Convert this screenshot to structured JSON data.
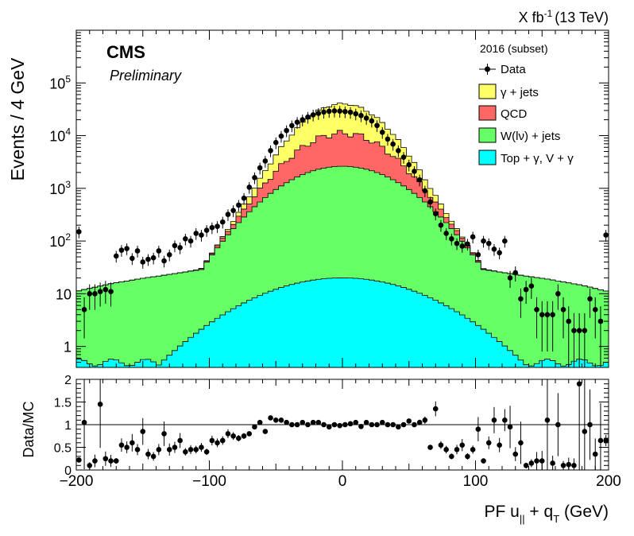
{
  "chart_data": [
    {
      "type": "stacked-histogram",
      "title": "",
      "lumi_label": {
        "main": "X fb",
        "exponent": "-1",
        "energy": "(13 TeV)"
      },
      "experiment": "CMS",
      "status": "Preliminary",
      "ylabel": "Events / 4 GeV",
      "yscale": "log",
      "ylim": [
        0.4,
        1000000
      ],
      "xlim": [
        -200,
        200
      ],
      "bin_width": 4,
      "grid": false,
      "legend_position": "top-right",
      "legend_header": "2016 (subset)",
      "y_ticks": [
        {
          "value": 100000,
          "base": "10",
          "exp": "5"
        },
        {
          "value": 10000,
          "base": "10",
          "exp": "4"
        },
        {
          "value": 1000,
          "base": "10",
          "exp": "3"
        },
        {
          "value": 100,
          "base": "10",
          "exp": "2"
        },
        {
          "value": 10,
          "base": "10",
          "exp": ""
        },
        {
          "value": 1,
          "base": "1",
          "exp": ""
        }
      ],
      "legend": [
        {
          "label": "Data",
          "kind": "marker",
          "color": "#000000"
        },
        {
          "label": "γ + jets",
          "kind": "fill",
          "color": "#ffff66"
        },
        {
          "label": "QCD",
          "kind": "fill",
          "color": "#ff6666"
        },
        {
          "label": "W(lν) + jets",
          "kind": "fill",
          "color": "#66ff66"
        },
        {
          "label": "Top + γ, V + γ",
          "kind": "fill",
          "color": "#00ffff"
        }
      ],
      "stack_order": [
        "Top + γ, V + γ",
        "W(lν) + jets",
        "QCD",
        "γ + jets"
      ],
      "series": [
        {
          "name": "Top + γ, V + γ",
          "color": "#00ffff",
          "peak": 20,
          "width": 50,
          "floor": 0.5
        },
        {
          "name": "W(lν) + jets",
          "color": "#66ff66",
          "peak_total": 2600,
          "width_core": 35,
          "tail_plateau": 45,
          "tail_slope_per_bin": 0.008
        },
        {
          "name": "QCD",
          "color": "#ff6666",
          "peak_total": 10000,
          "width": 25
        },
        {
          "name": "γ + jets",
          "color": "#ffff66",
          "peak_total": 29000,
          "width": 22
        }
      ],
      "data_points": [
        [
          -198,
          150
        ],
        [
          -194,
          5
        ],
        [
          -190,
          10
        ],
        [
          -186,
          10
        ],
        [
          -182,
          11
        ],
        [
          -178,
          12
        ],
        [
          -174,
          11
        ],
        [
          -170,
          52
        ],
        [
          -166,
          67
        ],
        [
          -162,
          72
        ],
        [
          -158,
          47
        ],
        [
          -154,
          65
        ],
        [
          -150,
          40
        ],
        [
          -146,
          45
        ],
        [
          -142,
          48
        ],
        [
          -138,
          65
        ],
        [
          -134,
          42
        ],
        [
          -130,
          55
        ],
        [
          -126,
          82
        ],
        [
          -122,
          75
        ],
        [
          -118,
          110
        ],
        [
          -114,
          100
        ],
        [
          -110,
          140
        ],
        [
          -106,
          130
        ],
        [
          -102,
          160
        ],
        [
          -98,
          180
        ],
        [
          -94,
          190
        ],
        [
          -90,
          230
        ],
        [
          -86,
          320
        ],
        [
          -82,
          380
        ],
        [
          -78,
          480
        ],
        [
          -74,
          650
        ],
        [
          -70,
          1050
        ],
        [
          -66,
          1600
        ],
        [
          -62,
          2450
        ],
        [
          -58,
          3300
        ],
        [
          -54,
          5200
        ],
        [
          -50,
          7400
        ],
        [
          -46,
          9800
        ],
        [
          -42,
          12500
        ],
        [
          -38,
          15500
        ],
        [
          -34,
          18000
        ],
        [
          -30,
          20000
        ],
        [
          -26,
          22500
        ],
        [
          -22,
          24800
        ],
        [
          -18,
          26500
        ],
        [
          -14,
          28000
        ],
        [
          -10,
          29000
        ],
        [
          -6,
          29500
        ],
        [
          -2,
          29200
        ],
        [
          2,
          28600
        ],
        [
          6,
          27800
        ],
        [
          10,
          26000
        ],
        [
          14,
          24000
        ],
        [
          18,
          21500
        ],
        [
          22,
          19000
        ],
        [
          26,
          15600
        ],
        [
          30,
          11600
        ],
        [
          34,
          8600
        ],
        [
          38,
          6900
        ],
        [
          42,
          5200
        ],
        [
          46,
          3900
        ],
        [
          50,
          2800
        ],
        [
          54,
          2100
        ],
        [
          58,
          1450
        ],
        [
          62,
          900
        ],
        [
          66,
          550
        ],
        [
          70,
          330
        ],
        [
          74,
          200
        ],
        [
          78,
          140
        ],
        [
          82,
          110
        ],
        [
          86,
          90
        ],
        [
          90,
          80
        ],
        [
          94,
          88
        ],
        [
          98,
          120
        ],
        [
          102,
          55
        ],
        [
          106,
          100
        ],
        [
          110,
          90
        ],
        [
          114,
          70
        ],
        [
          118,
          60
        ],
        [
          122,
          100
        ],
        [
          126,
          20
        ],
        [
          130,
          25
        ],
        [
          134,
          8
        ],
        [
          138,
          12
        ],
        [
          142,
          14
        ],
        [
          146,
          5
        ],
        [
          150,
          4
        ],
        [
          154,
          4
        ],
        [
          158,
          4
        ],
        [
          162,
          10
        ],
        [
          166,
          5
        ],
        [
          170,
          3
        ],
        [
          174,
          2
        ],
        [
          178,
          2
        ],
        [
          182,
          2
        ],
        [
          186,
          8
        ],
        [
          190,
          5
        ],
        [
          194,
          3
        ],
        [
          198,
          130
        ]
      ]
    },
    {
      "type": "scatter",
      "title": "",
      "ylabel": "Data/MC",
      "xlabel_main": "PF u",
      "xlabel_sub": "||",
      "xlabel_mid": " + q",
      "xlabel_sub2": "T",
      "xlabel_unit": " (GeV)",
      "xlim": [
        -200,
        200
      ],
      "ylim": [
        0,
        2
      ],
      "reference_line": 1,
      "grid": false,
      "y_ticks": [
        "0",
        "0.5",
        "1",
        "1.5",
        "2"
      ],
      "x_ticks": [
        "−200",
        "−100",
        "0",
        "100",
        "200"
      ],
      "x_tick_values": [
        -200,
        -100,
        0,
        100,
        200
      ],
      "y_tick_values": [
        0,
        0.5,
        1,
        1.5,
        2
      ],
      "points": [
        [
          -198,
          0.22
        ],
        [
          -194,
          1.05
        ],
        [
          -190,
          0.1
        ],
        [
          -186,
          0.2
        ],
        [
          -182,
          1.45
        ],
        [
          -178,
          0.25
        ],
        [
          -174,
          0.2
        ],
        [
          -170,
          0.2
        ],
        [
          -166,
          0.55
        ],
        [
          -162,
          0.5
        ],
        [
          -158,
          0.6
        ],
        [
          -154,
          0.45
        ],
        [
          -150,
          0.85
        ],
        [
          -146,
          0.35
        ],
        [
          -142,
          0.3
        ],
        [
          -138,
          0.45
        ],
        [
          -134,
          0.8
        ],
        [
          -130,
          0.45
        ],
        [
          -126,
          0.5
        ],
        [
          -122,
          0.65
        ],
        [
          -118,
          0.4
        ],
        [
          -114,
          0.45
        ],
        [
          -110,
          0.45
        ],
        [
          -106,
          0.5
        ],
        [
          -102,
          0.4
        ],
        [
          -98,
          0.65
        ],
        [
          -94,
          0.6
        ],
        [
          -90,
          0.65
        ],
        [
          -86,
          0.8
        ],
        [
          -82,
          0.75
        ],
        [
          -78,
          0.7
        ],
        [
          -74,
          0.75
        ],
        [
          -70,
          0.8
        ],
        [
          -66,
          0.95
        ],
        [
          -62,
          1.05
        ],
        [
          -58,
          0.85
        ],
        [
          -54,
          1.15
        ],
        [
          -50,
          1.1
        ],
        [
          -46,
          1.1
        ],
        [
          -42,
          1.05
        ],
        [
          -38,
          1.0
        ],
        [
          -34,
          1.0
        ],
        [
          -30,
          1.05
        ],
        [
          -26,
          1.0
        ],
        [
          -22,
          1.05
        ],
        [
          -18,
          1.05
        ],
        [
          -14,
          1.0
        ],
        [
          -10,
          0.95
        ],
        [
          -6,
          1.0
        ],
        [
          -2,
          0.98
        ],
        [
          2,
          1.0
        ],
        [
          6,
          1.02
        ],
        [
          10,
          1.05
        ],
        [
          14,
          0.96
        ],
        [
          18,
          1.05
        ],
        [
          22,
          1.0
        ],
        [
          26,
          1.0
        ],
        [
          30,
          1.05
        ],
        [
          34,
          1.0
        ],
        [
          38,
          1.0
        ],
        [
          42,
          0.95
        ],
        [
          46,
          1.0
        ],
        [
          50,
          1.08
        ],
        [
          54,
          1.0
        ],
        [
          58,
          1.05
        ],
        [
          62,
          1.1
        ],
        [
          66,
          0.5
        ],
        [
          70,
          1.35
        ],
        [
          74,
          0.55
        ],
        [
          78,
          0.45
        ],
        [
          82,
          0.3
        ],
        [
          86,
          0.45
        ],
        [
          90,
          0.55
        ],
        [
          94,
          0.3
        ],
        [
          98,
          0.45
        ],
        [
          102,
          0.9
        ],
        [
          106,
          0.2
        ],
        [
          110,
          0.6
        ],
        [
          114,
          1.1
        ],
        [
          118,
          0.55
        ],
        [
          122,
          1.1
        ],
        [
          126,
          0.95
        ],
        [
          130,
          0.35
        ],
        [
          134,
          0.6
        ],
        [
          138,
          0.1
        ],
        [
          142,
          0.15
        ],
        [
          146,
          0.2
        ],
        [
          150,
          0.2
        ],
        [
          154,
          1.1
        ],
        [
          158,
          0.15
        ],
        [
          162,
          1.0
        ],
        [
          166,
          0.1
        ],
        [
          170,
          0.12
        ],
        [
          174,
          0.1
        ],
        [
          178,
          1.9
        ],
        [
          182,
          0.85
        ],
        [
          186,
          1.0
        ],
        [
          190,
          0.35
        ],
        [
          194,
          0.65
        ],
        [
          198,
          0.65
        ]
      ]
    }
  ]
}
